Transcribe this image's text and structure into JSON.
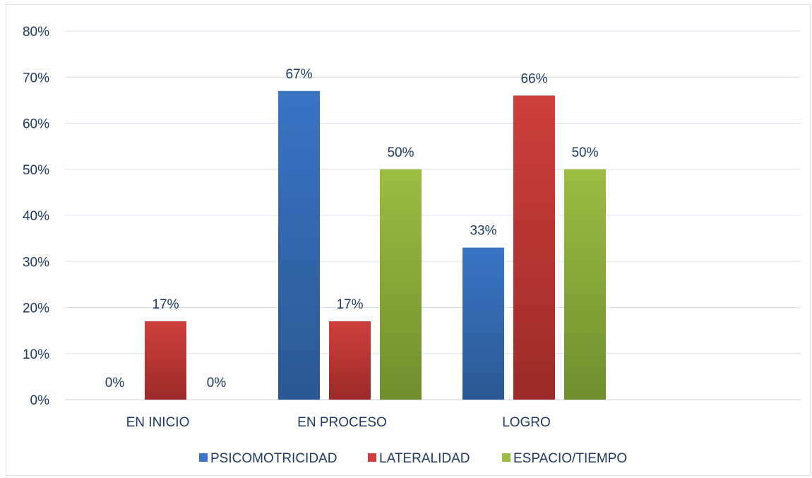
{
  "chart_data": {
    "type": "bar",
    "categories": [
      "EN INICIO",
      "EN PROCESO",
      "LOGRO"
    ],
    "series": [
      {
        "name": "PSICOMOTRICIDAD",
        "values": [
          0,
          67,
          33
        ],
        "color": "#3a74c4",
        "color_dark": "#2b5894"
      },
      {
        "name": "LATERALIDAD",
        "values": [
          17,
          17,
          66
        ],
        "color": "#cf3e3c",
        "color_dark": "#9c2b29"
      },
      {
        "name": "ESPACIO/TIEMPO",
        "values": [
          0,
          50,
          50
        ],
        "color": "#9bbd43",
        "color_dark": "#6f8f2e"
      }
    ],
    "value_format": "percent",
    "ylim": [
      0,
      80
    ],
    "yticks": [
      0,
      10,
      20,
      30,
      40,
      50,
      60,
      70,
      80
    ],
    "ytick_labels": [
      "0%",
      "10%",
      "20%",
      "30%",
      "40%",
      "50%",
      "60%",
      "70%",
      "80%"
    ],
    "data_labels": true,
    "grid": true,
    "legend": "bottom",
    "title": "",
    "xlabel": "",
    "ylabel": ""
  }
}
